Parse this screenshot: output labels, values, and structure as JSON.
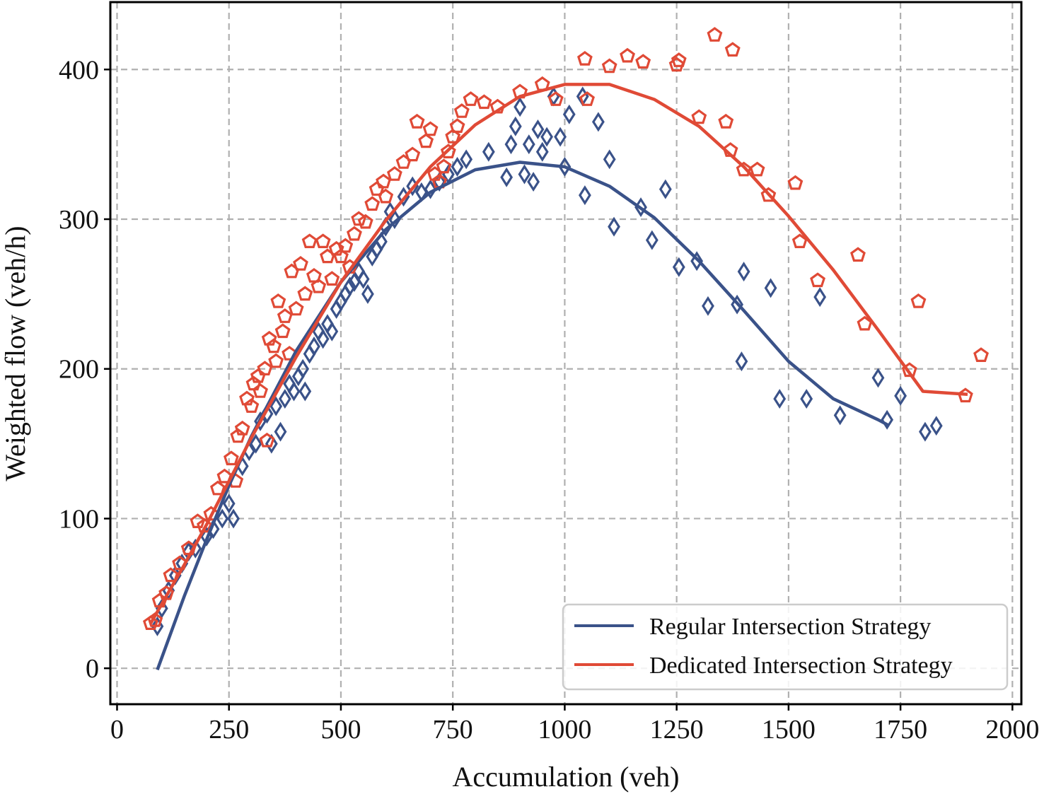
{
  "chart_data": {
    "type": "scatter",
    "title": "",
    "xlabel": "Accumulation (veh)",
    "ylabel": "Weighted flow (veh/h)",
    "xlim": [
      -15,
      2020
    ],
    "ylim": [
      -24,
      445
    ],
    "xticks": [
      0,
      250,
      500,
      750,
      1000,
      1250,
      1500,
      1750,
      2000
    ],
    "yticks": [
      0,
      100,
      200,
      300,
      400
    ],
    "grid": true,
    "legend": "lower-right",
    "series": [
      {
        "name": "Regular Intersection Strategy",
        "color": "#3a5289",
        "marker": "diamond",
        "points": [
          [
            90,
            28
          ],
          [
            100,
            40
          ],
          [
            115,
            52
          ],
          [
            130,
            62
          ],
          [
            145,
            70
          ],
          [
            160,
            78
          ],
          [
            175,
            80
          ],
          [
            200,
            88
          ],
          [
            215,
            93
          ],
          [
            235,
            100
          ],
          [
            250,
            110
          ],
          [
            260,
            100
          ],
          [
            280,
            135
          ],
          [
            295,
            145
          ],
          [
            310,
            150
          ],
          [
            320,
            165
          ],
          [
            335,
            170
          ],
          [
            345,
            150
          ],
          [
            355,
            175
          ],
          [
            365,
            158
          ],
          [
            375,
            180
          ],
          [
            385,
            190
          ],
          [
            395,
            185
          ],
          [
            405,
            195
          ],
          [
            415,
            200
          ],
          [
            420,
            185
          ],
          [
            430,
            210
          ],
          [
            440,
            215
          ],
          [
            450,
            225
          ],
          [
            460,
            220
          ],
          [
            470,
            230
          ],
          [
            480,
            225
          ],
          [
            490,
            240
          ],
          [
            500,
            245
          ],
          [
            510,
            250
          ],
          [
            520,
            255
          ],
          [
            530,
            258
          ],
          [
            540,
            265
          ],
          [
            550,
            260
          ],
          [
            560,
            250
          ],
          [
            570,
            275
          ],
          [
            580,
            280
          ],
          [
            590,
            285
          ],
          [
            600,
            295
          ],
          [
            610,
            305
          ],
          [
            620,
            300
          ],
          [
            640,
            315
          ],
          [
            660,
            322
          ],
          [
            680,
            318
          ],
          [
            700,
            320
          ],
          [
            720,
            325
          ],
          [
            740,
            330
          ],
          [
            760,
            335
          ],
          [
            780,
            340
          ],
          [
            830,
            345
          ],
          [
            870,
            328
          ],
          [
            880,
            350
          ],
          [
            890,
            362
          ],
          [
            900,
            375
          ],
          [
            910,
            330
          ],
          [
            920,
            350
          ],
          [
            930,
            325
          ],
          [
            940,
            360
          ],
          [
            950,
            345
          ],
          [
            960,
            355
          ],
          [
            975,
            382
          ],
          [
            990,
            355
          ],
          [
            1000,
            335
          ],
          [
            1010,
            370
          ],
          [
            1040,
            382
          ],
          [
            1045,
            316
          ],
          [
            1075,
            365
          ],
          [
            1100,
            340
          ],
          [
            1110,
            295
          ],
          [
            1170,
            308
          ],
          [
            1195,
            286
          ],
          [
            1225,
            320
          ],
          [
            1255,
            268
          ],
          [
            1295,
            272
          ],
          [
            1320,
            242
          ],
          [
            1385,
            243
          ],
          [
            1395,
            205
          ],
          [
            1400,
            265
          ],
          [
            1460,
            254
          ],
          [
            1480,
            180
          ],
          [
            1540,
            180
          ],
          [
            1570,
            248
          ],
          [
            1615,
            169
          ],
          [
            1700,
            194
          ],
          [
            1720,
            166
          ],
          [
            1750,
            182
          ],
          [
            1805,
            158
          ],
          [
            1830,
            162
          ]
        ],
        "fit": [
          [
            90,
            -1
          ],
          [
            150,
            48
          ],
          [
            200,
            86
          ],
          [
            250,
            122
          ],
          [
            300,
            155
          ],
          [
            400,
            212
          ],
          [
            500,
            258
          ],
          [
            600,
            293
          ],
          [
            700,
            318
          ],
          [
            800,
            333
          ],
          [
            900,
            338
          ],
          [
            1000,
            335
          ],
          [
            1100,
            322
          ],
          [
            1200,
            301
          ],
          [
            1300,
            272
          ],
          [
            1400,
            239
          ],
          [
            1500,
            205
          ],
          [
            1600,
            180
          ],
          [
            1700,
            166
          ],
          [
            1725,
            162
          ]
        ]
      },
      {
        "name": "Dedicated Intersection Strategy",
        "color": "#e04a36",
        "marker": "pentagon",
        "points": [
          [
            75,
            30
          ],
          [
            85,
            32
          ],
          [
            95,
            45
          ],
          [
            110,
            50
          ],
          [
            120,
            62
          ],
          [
            140,
            70
          ],
          [
            160,
            80
          ],
          [
            180,
            98
          ],
          [
            195,
            95
          ],
          [
            210,
            103
          ],
          [
            225,
            120
          ],
          [
            240,
            128
          ],
          [
            255,
            140
          ],
          [
            265,
            125
          ],
          [
            270,
            155
          ],
          [
            280,
            160
          ],
          [
            290,
            180
          ],
          [
            300,
            175
          ],
          [
            305,
            190
          ],
          [
            315,
            195
          ],
          [
            320,
            185
          ],
          [
            330,
            200
          ],
          [
            335,
            152
          ],
          [
            340,
            220
          ],
          [
            350,
            215
          ],
          [
            355,
            205
          ],
          [
            360,
            245
          ],
          [
            370,
            225
          ],
          [
            375,
            235
          ],
          [
            385,
            210
          ],
          [
            390,
            265
          ],
          [
            400,
            240
          ],
          [
            410,
            270
          ],
          [
            420,
            250
          ],
          [
            430,
            285
          ],
          [
            440,
            262
          ],
          [
            450,
            255
          ],
          [
            460,
            285
          ],
          [
            470,
            275
          ],
          [
            480,
            260
          ],
          [
            490,
            280
          ],
          [
            500,
            275
          ],
          [
            510,
            282
          ],
          [
            520,
            268
          ],
          [
            530,
            290
          ],
          [
            540,
            300
          ],
          [
            555,
            298
          ],
          [
            570,
            310
          ],
          [
            580,
            320
          ],
          [
            595,
            325
          ],
          [
            600,
            315
          ],
          [
            620,
            330
          ],
          [
            640,
            338
          ],
          [
            660,
            343
          ],
          [
            670,
            365
          ],
          [
            690,
            352
          ],
          [
            700,
            360
          ],
          [
            710,
            330
          ],
          [
            720,
            325
          ],
          [
            730,
            335
          ],
          [
            740,
            345
          ],
          [
            750,
            355
          ],
          [
            760,
            362
          ],
          [
            770,
            372
          ],
          [
            790,
            380
          ],
          [
            820,
            378
          ],
          [
            850,
            375
          ],
          [
            900,
            385
          ],
          [
            950,
            390
          ],
          [
            980,
            380
          ],
          [
            1045,
            407
          ],
          [
            1050,
            380
          ],
          [
            1100,
            402
          ],
          [
            1140,
            409
          ],
          [
            1175,
            405
          ],
          [
            1250,
            403
          ],
          [
            1255,
            406
          ],
          [
            1300,
            368
          ],
          [
            1335,
            423
          ],
          [
            1360,
            365
          ],
          [
            1370,
            346
          ],
          [
            1375,
            413
          ],
          [
            1400,
            333
          ],
          [
            1430,
            333
          ],
          [
            1455,
            316
          ],
          [
            1515,
            324
          ],
          [
            1525,
            285
          ],
          [
            1565,
            259
          ],
          [
            1655,
            276
          ],
          [
            1670,
            230
          ],
          [
            1770,
            199
          ],
          [
            1790,
            245
          ],
          [
            1895,
            182
          ],
          [
            1930,
            209
          ]
        ],
        "fit": [
          [
            75,
            30
          ],
          [
            150,
            69
          ],
          [
            200,
            96
          ],
          [
            300,
            154
          ],
          [
            400,
            208
          ],
          [
            500,
            258
          ],
          [
            600,
            299
          ],
          [
            700,
            335
          ],
          [
            800,
            363
          ],
          [
            900,
            382
          ],
          [
            1000,
            390
          ],
          [
            1100,
            390
          ],
          [
            1200,
            380
          ],
          [
            1300,
            362
          ],
          [
            1400,
            335
          ],
          [
            1500,
            302
          ],
          [
            1600,
            266
          ],
          [
            1700,
            226
          ],
          [
            1800,
            185
          ],
          [
            1900,
            183
          ]
        ]
      }
    ]
  }
}
